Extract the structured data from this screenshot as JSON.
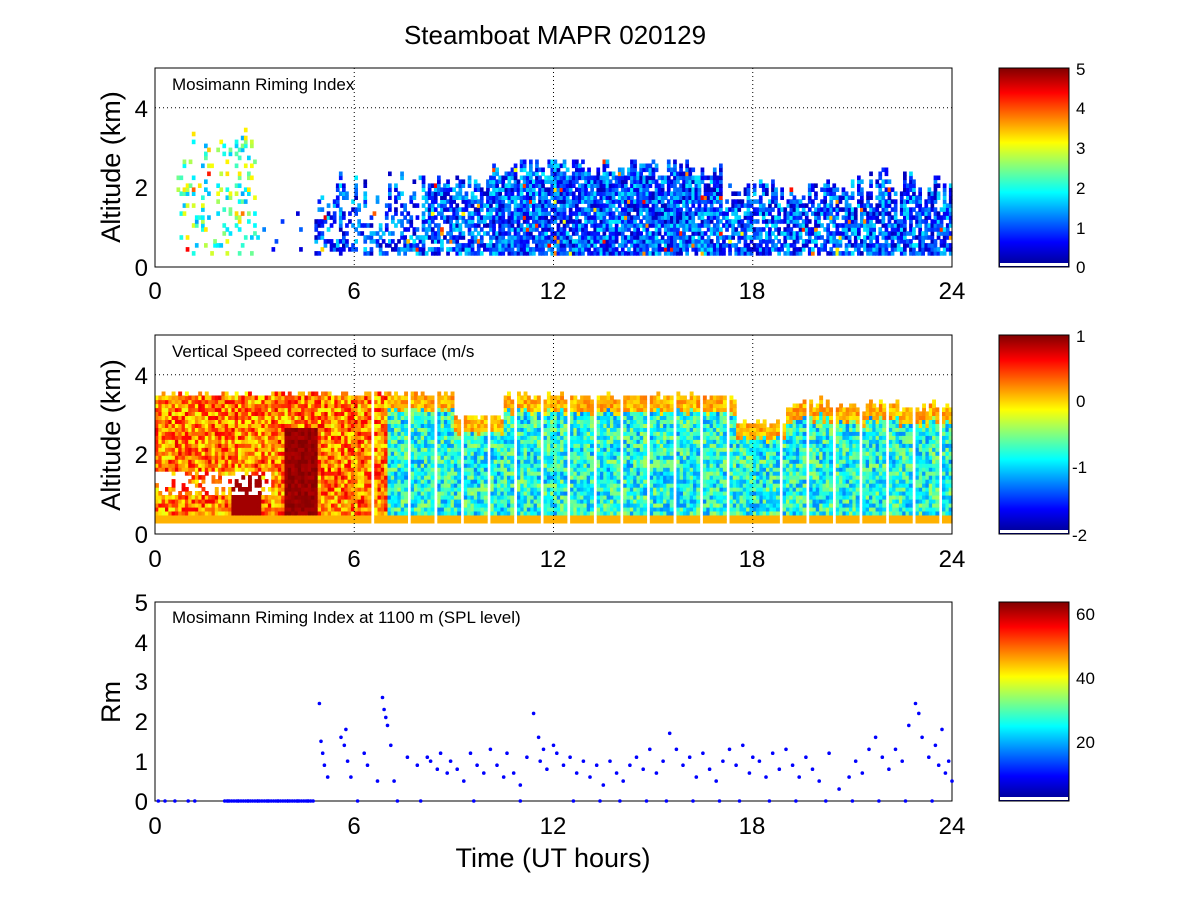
{
  "figure": {
    "title": "Steamboat MAPR 020129",
    "x_label": "Time (UT hours)"
  },
  "colors": {
    "axis": "#000000",
    "grid": "#000000",
    "marker": "#0000ff"
  },
  "chart_data": [
    {
      "type": "heatmap",
      "title": "Mosimann Riming Index",
      "xlabel": "",
      "ylabel": "Altitude (km)",
      "xlim": [
        0,
        24
      ],
      "ylim": [
        0,
        5
      ],
      "xticks": [
        "0",
        "6",
        "12",
        "18",
        "24"
      ],
      "yticks": [
        "0",
        "2",
        "4"
      ],
      "grid": "dotted",
      "colorbar": {
        "range": [
          0,
          5
        ],
        "ticks": [
          "0",
          "1",
          "2",
          "3",
          "4",
          "5"
        ]
      },
      "typical": {
        "0-4": 2.0,
        "5-24": 1.0
      }
    },
    {
      "type": "heatmap",
      "title": "Vertical Speed corrected to surface (m/s",
      "xlabel": "",
      "ylabel": "Altitude (km)",
      "xlim": [
        0,
        24
      ],
      "ylim": [
        0,
        5
      ],
      "xticks": [
        "0",
        "6",
        "12",
        "18",
        "24"
      ],
      "yticks": [
        "0",
        "2",
        "4"
      ],
      "grid": "dotted",
      "colorbar": {
        "range": [
          -2,
          1
        ],
        "ticks": [
          "-2",
          "-1",
          "0",
          "1"
        ]
      },
      "typical": {
        "0-7": 0.2,
        "7-24": -0.8
      }
    },
    {
      "type": "scatter",
      "title": "Mosimann Riming Index at 1100 m (SPL level)",
      "xlabel": "Time (UT hours)",
      "ylabel": "Rm",
      "xlim": [
        0,
        24
      ],
      "ylim": [
        0,
        5
      ],
      "xticks": [
        "0",
        "6",
        "12",
        "18",
        "24"
      ],
      "yticks": [
        "0",
        "1",
        "2",
        "3",
        "4",
        "5"
      ],
      "colorbar": {
        "range": [
          0,
          65
        ],
        "ticks": [
          "20",
          "40",
          "60"
        ]
      },
      "x": [
        0.1,
        0.3,
        0.6,
        1.0,
        1.2,
        2.2,
        2.5,
        2.8,
        3.1,
        3.4,
        3.7,
        4.0,
        4.3,
        4.6,
        4.95,
        5.0,
        5.05,
        5.1,
        5.2,
        5.6,
        5.7,
        5.75,
        5.8,
        5.9,
        6.1,
        6.3,
        6.4,
        6.7,
        6.85,
        6.9,
        6.95,
        7.0,
        7.1,
        7.2,
        7.3,
        7.6,
        7.9,
        8.2,
        8.3,
        8.5,
        8.6,
        8.8,
        8.9,
        9.1,
        9.3,
        9.5,
        9.7,
        9.9,
        10.1,
        10.3,
        10.5,
        10.6,
        10.8,
        11.0,
        11.2,
        11.4,
        11.55,
        11.6,
        11.7,
        11.8,
        12.0,
        12.1,
        12.3,
        12.5,
        12.7,
        12.9,
        13.1,
        13.3,
        13.5,
        13.7,
        13.9,
        14.1,
        14.3,
        14.5,
        14.7,
        14.9,
        15.1,
        15.3,
        15.5,
        15.7,
        15.9,
        16.1,
        16.3,
        16.5,
        16.7,
        16.9,
        17.1,
        17.3,
        17.5,
        17.7,
        17.9,
        18.0,
        18.2,
        18.4,
        18.6,
        18.8,
        19.0,
        19.2,
        19.4,
        19.6,
        19.8,
        20.0,
        20.3,
        20.6,
        20.9,
        21.1,
        21.3,
        21.5,
        21.7,
        21.9,
        22.1,
        22.3,
        22.5,
        22.7,
        22.9,
        23.0,
        23.1,
        23.3,
        23.5,
        23.6,
        23.7,
        23.8,
        23.9,
        24.0
      ],
      "y": [
        0,
        0,
        0,
        0,
        0,
        0,
        0,
        0,
        0,
        0,
        0,
        0,
        0,
        0,
        2.45,
        1.5,
        1.2,
        0.9,
        0.6,
        1.6,
        1.4,
        1.8,
        1.0,
        0.6,
        0,
        1.2,
        0.9,
        0.5,
        2.6,
        2.3,
        2.1,
        1.9,
        1.4,
        0.5,
        0,
        1.1,
        0.9,
        1.1,
        1.0,
        0.8,
        1.2,
        0.7,
        1.0,
        0.8,
        0.5,
        1.2,
        0.9,
        0.7,
        1.3,
        0.9,
        0.6,
        1.2,
        0.7,
        0.4,
        1.1,
        2.2,
        1.6,
        1.0,
        1.3,
        0.8,
        1.4,
        1.2,
        0.9,
        1.1,
        0.7,
        1.0,
        0.6,
        0.9,
        0.4,
        1.0,
        0.7,
        0.5,
        0.9,
        1.1,
        0.8,
        1.3,
        0.7,
        1.0,
        1.7,
        1.3,
        0.9,
        1.1,
        0.6,
        1.2,
        0.8,
        0.5,
        1.0,
        1.3,
        0.9,
        1.4,
        0.7,
        1.1,
        1.0,
        0.6,
        1.2,
        0.8,
        1.3,
        0.9,
        0.6,
        1.1,
        0.8,
        0.5,
        1.2,
        0.3,
        0.6,
        1.0,
        0.7,
        1.3,
        1.6,
        1.1,
        0.8,
        1.3,
        1.0,
        1.9,
        2.45,
        2.2,
        1.6,
        1.1,
        1.4,
        0.9,
        1.8,
        0.7,
        1.0,
        0.5
      ],
      "zero_x": [
        8.0,
        9.6,
        11.0,
        12.6,
        13.4,
        14.0,
        14.8,
        15.4,
        16.2,
        17.0,
        17.6,
        18.5,
        19.3,
        20.2,
        21.0,
        21.8,
        22.6,
        23.4
      ]
    }
  ]
}
